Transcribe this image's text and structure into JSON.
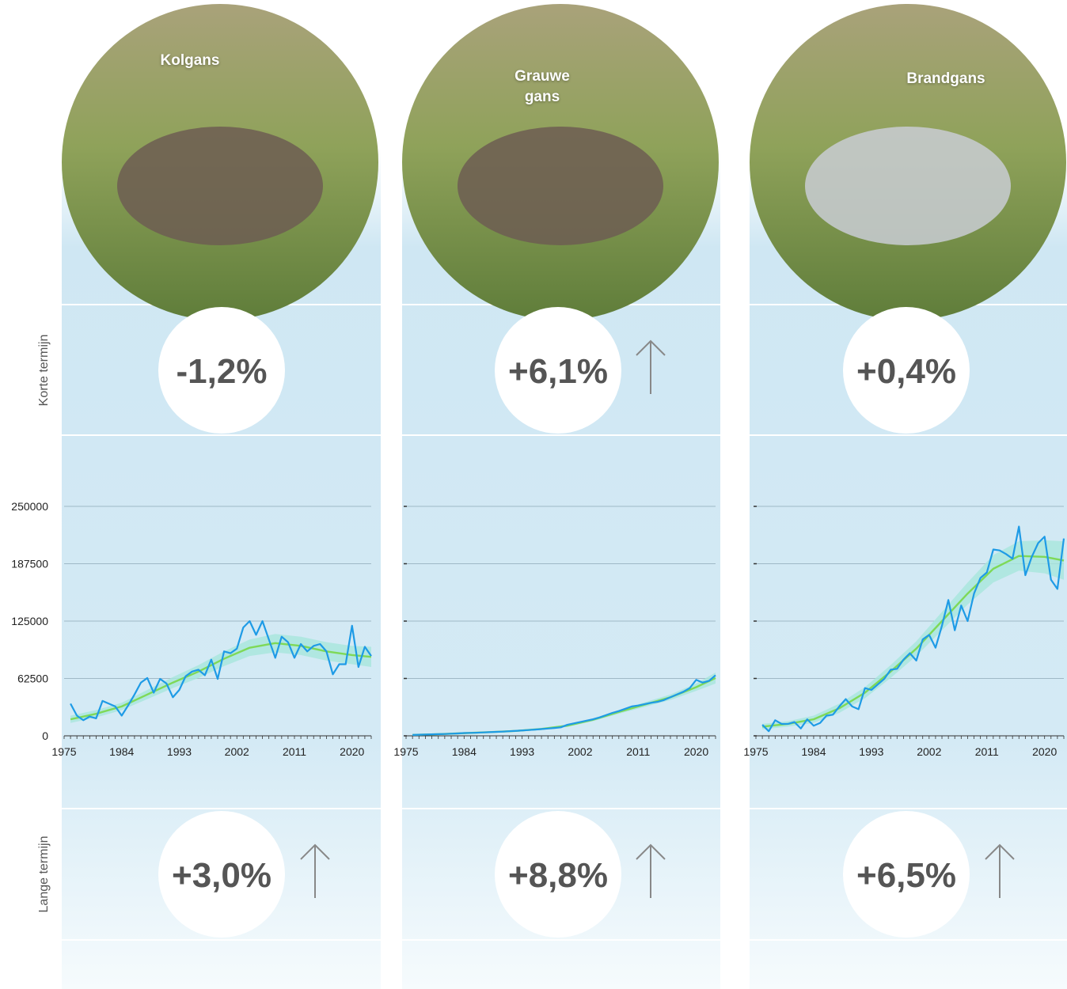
{
  "row_labels": {
    "short_term": "Korte termijn",
    "long_term": "Lange termijn"
  },
  "chart_data": [
    {
      "type": "line",
      "title": "Kolgans",
      "short_term": "-1,2%",
      "short_term_arrow": false,
      "long_term": "+3,0%",
      "long_term_arrow": true,
      "xlim": [
        1975,
        2023
      ],
      "xticks": [
        1975,
        1984,
        1993,
        2002,
        2011,
        2020
      ],
      "ylim": [
        0,
        250000
      ],
      "yticks": [
        0,
        62500,
        125000,
        187500,
        250000
      ],
      "ytick_labels": true,
      "grid": true,
      "series": [
        {
          "color": "#1e9be6",
          "x": [
            1976,
            1977,
            1978,
            1979,
            1980,
            1981,
            1982,
            1983,
            1984,
            1985,
            1986,
            1987,
            1988,
            1989,
            1990,
            1991,
            1992,
            1993,
            1994,
            1995,
            1996,
            1997,
            1998,
            1999,
            2000,
            2001,
            2002,
            2003,
            2004,
            2005,
            2006,
            2007,
            2008,
            2009,
            2010,
            2011,
            2012,
            2013,
            2014,
            2015,
            2016,
            2017,
            2018,
            2019,
            2020,
            2021,
            2022,
            2023
          ],
          "values": [
            35000,
            22000,
            17000,
            21000,
            19000,
            38000,
            35000,
            32000,
            22000,
            33000,
            45000,
            58000,
            63000,
            47000,
            62000,
            57000,
            42000,
            50000,
            65000,
            70000,
            72000,
            66000,
            83000,
            62000,
            92000,
            90000,
            95000,
            118000,
            125000,
            110000,
            125000,
            105000,
            85000,
            108000,
            102000,
            85000,
            100000,
            92000,
            98000,
            100000,
            92000,
            67000,
            78000,
            78000,
            120000,
            75000,
            97000,
            87000
          ]
        },
        {
          "color": "#7ed957",
          "band_color": "#a8e6dc",
          "x": [
            1976,
            1980,
            1984,
            1988,
            1992,
            1996,
            2000,
            2004,
            2008,
            2012,
            2016,
            2020,
            2023
          ],
          "values": [
            18000,
            24000,
            32000,
            45000,
            58000,
            70000,
            84000,
            96000,
            101000,
            98000,
            92000,
            88000,
            86000
          ],
          "lower": [
            14000,
            20000,
            28000,
            40000,
            52000,
            63000,
            76000,
            87000,
            91000,
            88000,
            82000,
            78000,
            75000
          ],
          "upper": [
            22000,
            28000,
            36000,
            50000,
            64000,
            77000,
            92000,
            105000,
            111000,
            108000,
            102000,
            98000,
            97000
          ]
        }
      ]
    },
    {
      "type": "line",
      "title": "Grauwe gans",
      "short_term": "+6,1%",
      "short_term_arrow": true,
      "long_term": "+8,8%",
      "long_term_arrow": true,
      "xlim": [
        1975,
        2023
      ],
      "xticks": [
        1975,
        1984,
        1993,
        2002,
        2011,
        2020
      ],
      "ylim": [
        0,
        250000
      ],
      "yticks": [
        0,
        62500,
        125000,
        187500,
        250000
      ],
      "ytick_labels": false,
      "grid": true,
      "series": [
        {
          "color": "#1e9be6",
          "x": [
            1976,
            1977,
            1978,
            1979,
            1980,
            1981,
            1982,
            1983,
            1984,
            1985,
            1986,
            1987,
            1988,
            1989,
            1990,
            1991,
            1992,
            1993,
            1994,
            1995,
            1996,
            1997,
            1998,
            1999,
            2000,
            2001,
            2002,
            2003,
            2004,
            2005,
            2006,
            2007,
            2008,
            2009,
            2010,
            2011,
            2012,
            2013,
            2014,
            2015,
            2016,
            2017,
            2018,
            2019,
            2020,
            2021,
            2022,
            2023
          ],
          "values": [
            1000,
            1200,
            1400,
            1600,
            1800,
            2000,
            2300,
            2600,
            3000,
            3200,
            3400,
            3700,
            4000,
            4300,
            4600,
            5000,
            5400,
            5800,
            6300,
            6800,
            7300,
            7900,
            8500,
            9200,
            12000,
            13500,
            15000,
            16500,
            18000,
            20000,
            22500,
            25000,
            27000,
            29500,
            32000,
            33000,
            34500,
            36000,
            37000,
            39000,
            42000,
            45000,
            48000,
            52000,
            61000,
            58000,
            60000,
            66000
          ]
        },
        {
          "color": "#7ed957",
          "band_color": "#a8e6dc",
          "x": [
            1976,
            1980,
            1984,
            1988,
            1992,
            1996,
            2000,
            2004,
            2008,
            2012,
            2016,
            2020,
            2023
          ],
          "values": [
            1000,
            1800,
            2900,
            4000,
            5300,
            7500,
            11000,
            17500,
            26000,
            34000,
            42000,
            53000,
            63000
          ],
          "lower": [
            500,
            1200,
            2200,
            3200,
            4400,
            6400,
            9700,
            16000,
            24000,
            31500,
            39000,
            49000,
            57000
          ],
          "upper": [
            1500,
            2400,
            3600,
            4800,
            6200,
            8600,
            12300,
            19000,
            28000,
            36500,
            45000,
            57000,
            69000
          ]
        }
      ]
    },
    {
      "type": "line",
      "title": "Brandgans",
      "short_term": "+0,4%",
      "short_term_arrow": false,
      "long_term": "+6,5%",
      "long_term_arrow": true,
      "xlim": [
        1975,
        2023
      ],
      "xticks": [
        1975,
        1984,
        1993,
        2002,
        2011,
        2020
      ],
      "ylim": [
        0,
        250000
      ],
      "yticks": [
        0,
        62500,
        125000,
        187500,
        250000
      ],
      "ytick_labels": false,
      "grid": true,
      "series": [
        {
          "color": "#1e9be6",
          "x": [
            1976,
            1977,
            1978,
            1979,
            1980,
            1981,
            1982,
            1983,
            1984,
            1985,
            1986,
            1987,
            1988,
            1989,
            1990,
            1991,
            1992,
            1993,
            1994,
            1995,
            1996,
            1997,
            1998,
            1999,
            2000,
            2001,
            2002,
            2003,
            2004,
            2005,
            2006,
            2007,
            2008,
            2009,
            2010,
            2011,
            2012,
            2013,
            2014,
            2015,
            2016,
            2017,
            2018,
            2019,
            2020,
            2021,
            2022,
            2023
          ],
          "values": [
            12000,
            5000,
            17000,
            13000,
            13000,
            15000,
            8000,
            18000,
            11000,
            14000,
            22000,
            23000,
            32000,
            40000,
            32000,
            29000,
            52000,
            50000,
            56000,
            62000,
            72000,
            73000,
            83000,
            90000,
            82000,
            105000,
            110000,
            96000,
            120000,
            148000,
            115000,
            142000,
            125000,
            155000,
            172000,
            178000,
            203000,
            202000,
            198000,
            193000,
            228000,
            175000,
            195000,
            210000,
            217000,
            170000,
            160000,
            215000
          ]
        },
        {
          "color": "#7ed957",
          "band_color": "#a8e6dc",
          "x": [
            1976,
            1980,
            1984,
            1988,
            1992,
            1996,
            2000,
            2004,
            2008,
            2012,
            2016,
            2020,
            2023
          ],
          "values": [
            10000,
            13000,
            18000,
            30000,
            47000,
            70000,
            95000,
            125000,
            155000,
            182000,
            196000,
            195000,
            191000
          ],
          "lower": [
            7000,
            10000,
            14000,
            25000,
            41000,
            63000,
            87000,
            115000,
            143000,
            167000,
            180000,
            177000,
            170000
          ],
          "upper": [
            13000,
            16000,
            22000,
            35000,
            53000,
            77000,
            103000,
            135000,
            167000,
            197000,
            212000,
            213000,
            212000
          ]
        }
      ]
    }
  ]
}
